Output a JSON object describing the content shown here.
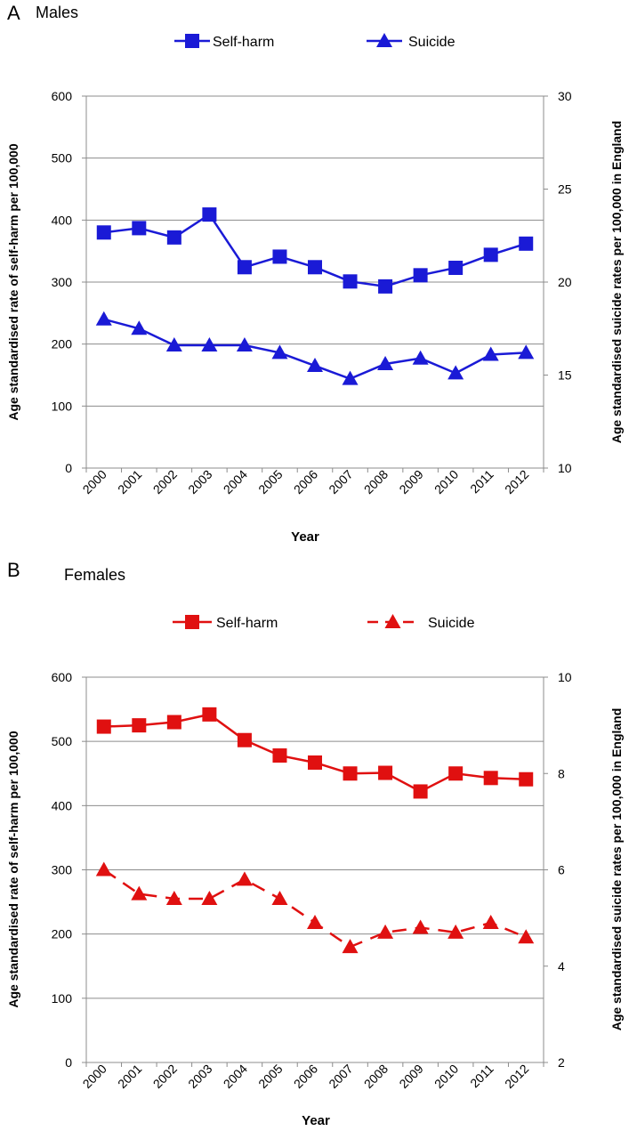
{
  "chart_data": [
    {
      "type": "line",
      "panel": "A",
      "title": "Males",
      "xlabel": "Year",
      "ylabel_left": "Age standardised rate of self-harm per 100,000",
      "ylabel_right": "Age standardised  suicide rates per 100,000 in England",
      "categories": [
        "2000",
        "2001",
        "2002",
        "2003",
        "2004",
        "2005",
        "2006",
        "2007",
        "2008",
        "2009",
        "2010",
        "2011",
        "2012"
      ],
      "ylim_left": [
        0,
        600
      ],
      "yticks_left": [
        "0",
        "100",
        "200",
        "300",
        "400",
        "500",
        "600"
      ],
      "ylim_right": [
        10,
        30
      ],
      "yticks_right": [
        "10",
        "15",
        "20",
        "25",
        "30"
      ],
      "color": "#1a1ad6",
      "grid": true,
      "legend_position": "top",
      "series": [
        {
          "name": "Self-harm",
          "axis": "left",
          "marker": "square",
          "dash": "solid",
          "values": [
            380,
            387,
            372,
            409,
            324,
            341,
            324,
            301,
            293,
            311,
            323,
            344,
            362
          ]
        },
        {
          "name": "Suicide",
          "axis": "right",
          "marker": "triangle",
          "dash": "solid",
          "values": [
            18.0,
            17.5,
            16.6,
            16.6,
            16.6,
            16.2,
            15.5,
            14.8,
            15.6,
            15.9,
            15.1,
            16.1,
            16.2
          ]
        }
      ]
    },
    {
      "type": "line",
      "panel": "B",
      "title": "Females",
      "xlabel": "Year",
      "ylabel_left": "Age standardised rate of self-harm per 100,000",
      "ylabel_right": "Age standardised  suicide rates per 100,000 in England",
      "categories": [
        "2000",
        "2001",
        "2002",
        "2003",
        "2004",
        "2005",
        "2006",
        "2007",
        "2008",
        "2009",
        "2010",
        "2011",
        "2012"
      ],
      "ylim_left": [
        0,
        600
      ],
      "yticks_left": [
        "0",
        "100",
        "200",
        "300",
        "400",
        "500",
        "600"
      ],
      "ylim_right": [
        2,
        10
      ],
      "yticks_right": [
        "2",
        "4",
        "6",
        "8",
        "10"
      ],
      "color": "#e01010",
      "grid": true,
      "legend_position": "top",
      "series": [
        {
          "name": "Self-harm",
          "axis": "left",
          "marker": "square",
          "dash": "solid",
          "values": [
            523,
            525,
            530,
            542,
            502,
            478,
            467,
            450,
            451,
            422,
            450,
            443,
            441
          ]
        },
        {
          "name": "Suicide",
          "axis": "right",
          "marker": "triangle",
          "dash": "dashed",
          "values": [
            6.0,
            5.5,
            5.4,
            5.4,
            5.8,
            5.4,
            4.9,
            4.4,
            4.7,
            4.8,
            4.7,
            4.9,
            4.6
          ]
        }
      ]
    }
  ]
}
